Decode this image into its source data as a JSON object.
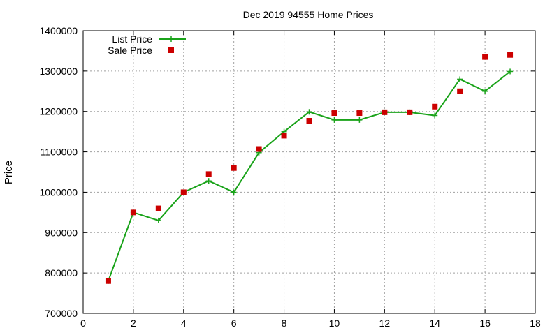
{
  "chart_data": {
    "type": "line",
    "title": "Dec 2019 94555 Home Prices",
    "xlabel": "",
    "ylabel": "Price",
    "xlim": [
      0,
      18
    ],
    "ylim": [
      700000,
      1400000
    ],
    "xticks": [
      0,
      2,
      4,
      6,
      8,
      10,
      12,
      14,
      16,
      18
    ],
    "yticks": [
      700000,
      800000,
      900000,
      1000000,
      1100000,
      1200000,
      1300000,
      1400000
    ],
    "grid": true,
    "legend_position": "top-left",
    "series": [
      {
        "name": "List Price",
        "style": "line+cross",
        "color": "#1aa31a",
        "x": [
          1,
          2,
          3,
          4,
          5,
          6,
          7,
          8,
          9,
          10,
          11,
          12,
          13,
          14,
          15,
          16,
          17
        ],
        "y": [
          780000,
          950000,
          930000,
          1000000,
          1028000,
          1000000,
          1098000,
          1150000,
          1199000,
          1179000,
          1179000,
          1198000,
          1198000,
          1190000,
          1280000,
          1250000,
          1299000
        ]
      },
      {
        "name": "Sale Price",
        "style": "square",
        "color": "#cc0000",
        "x": [
          1,
          2,
          3,
          4,
          5,
          6,
          7,
          8,
          9,
          10,
          11,
          12,
          13,
          14,
          15,
          16,
          17
        ],
        "y": [
          780000,
          950000,
          960000,
          1000000,
          1045000,
          1060000,
          1107000,
          1140000,
          1177000,
          1196000,
          1196000,
          1198000,
          1198000,
          1212000,
          1250000,
          1335000,
          1340000
        ]
      }
    ]
  }
}
